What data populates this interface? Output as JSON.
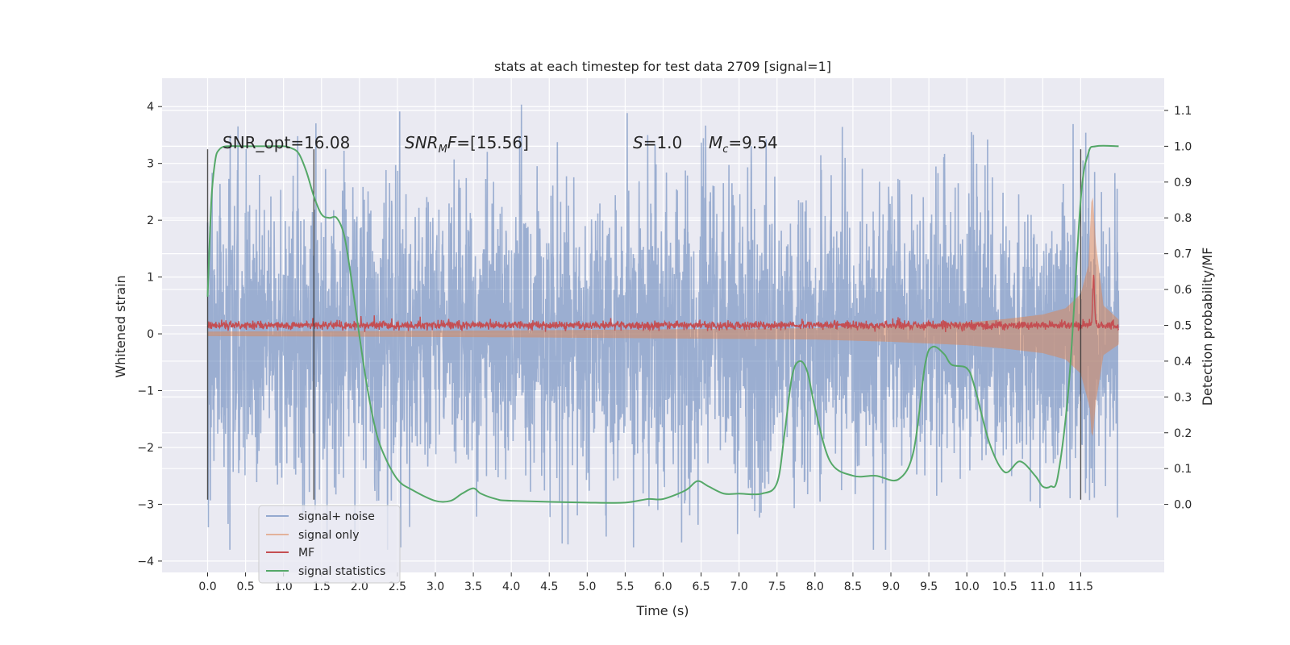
{
  "chart_data": {
    "type": "line",
    "title": "stats at each timestep for test data 2709 [signal=1]",
    "xlabel": "Time (s)",
    "ylabel": "Whitened strain",
    "y2label": "Detection probability/MF",
    "xlim": [
      -0.6,
      12.6
    ],
    "ylim": [
      -4.2,
      4.5
    ],
    "y2lim": [
      -0.19,
      1.19
    ],
    "x_ticks": [
      0.0,
      0.5,
      1.0,
      1.5,
      2.0,
      2.5,
      3.0,
      3.5,
      4.0,
      4.5,
      5.0,
      5.5,
      6.0,
      6.5,
      7.0,
      7.5,
      8.0,
      8.5,
      9.0,
      9.5,
      10.0,
      10.5,
      11.0,
      11.5
    ],
    "x_tick_labels": [
      "0.0",
      "0.5",
      "1.0",
      "1.5",
      "2.0",
      "2.5",
      "3.0",
      "3.5",
      "4.0",
      "4.5",
      "5.0",
      "5.5",
      "6.0",
      "6.5",
      "7.0",
      "7.5",
      "8.0",
      "8.5",
      "9.0",
      "9.5",
      "10.0",
      "10.5",
      "11.0",
      "11.5"
    ],
    "y_ticks": [
      -4,
      -3,
      -2,
      -1,
      0,
      1,
      2,
      3,
      4
    ],
    "y_tick_labels": [
      "−4",
      "−3",
      "−2",
      "−1",
      "0",
      "1",
      "2",
      "3",
      "4"
    ],
    "y2_ticks": [
      0.0,
      0.1,
      0.2,
      0.3,
      0.4,
      0.5,
      0.6,
      0.7,
      0.8,
      0.9,
      1.0,
      1.1
    ],
    "y2_tick_labels": [
      "0.0",
      "0.1",
      "0.2",
      "0.3",
      "0.4",
      "0.5",
      "0.6",
      "0.7",
      "0.8",
      "0.9",
      "1.0",
      "1.1"
    ],
    "grid": true,
    "legend_position": "lower-left",
    "annotations": {
      "snr_opt": "SNR_opt=16.08",
      "snr_mf_var": "SNR",
      "snr_mf_sub": "M",
      "snr_mf_f": "F",
      "snr_mf_rest": "=[15.56]",
      "s_var": "S",
      "s_rest": "=1.0",
      "mc_var": "M",
      "mc_sub": "c",
      "mc_rest": "=9.54"
    },
    "vertical_lines_x": [
      0.0,
      1.4,
      11.5
    ],
    "series": [
      {
        "name": "signal+ noise",
        "color": "#4c72b0",
        "axis": "left",
        "style": "dense noise band",
        "t_range": [
          0.0,
          12.0
        ],
        "typical_amplitude": 2.0,
        "max_peak": 4.1,
        "min_trough": -3.8
      },
      {
        "name": "signal only",
        "color": "#dd8452",
        "axis": "left",
        "style": "chirp envelope",
        "envelope_x": [
          0.0,
          2.0,
          4.0,
          6.0,
          8.0,
          9.0,
          10.0,
          10.5,
          11.0,
          11.3,
          11.5,
          11.6,
          11.65,
          11.7,
          11.8,
          12.0
        ],
        "envelope_y": [
          0.04,
          0.05,
          0.06,
          0.08,
          0.1,
          0.14,
          0.2,
          0.26,
          0.34,
          0.45,
          0.7,
          1.2,
          2.6,
          1.6,
          0.5,
          0.25
        ]
      },
      {
        "name": "MF",
        "color": "#c44e52",
        "axis": "right",
        "style": "noisy line",
        "baseline": 0.5,
        "peak_x": 11.67,
        "peak_value": 0.63
      },
      {
        "name": "signal statistics",
        "color": "#55a868",
        "axis": "right",
        "x": [
          0.0,
          0.05,
          0.1,
          0.15,
          0.25,
          0.5,
          0.8,
          1.0,
          1.1,
          1.2,
          1.3,
          1.4,
          1.5,
          1.6,
          1.7,
          1.8,
          1.9,
          2.0,
          2.1,
          2.2,
          2.3,
          2.5,
          2.7,
          3.0,
          3.2,
          3.35,
          3.5,
          3.6,
          3.8,
          4.0,
          5.0,
          5.5,
          5.8,
          6.0,
          6.3,
          6.45,
          6.6,
          6.8,
          7.0,
          7.3,
          7.5,
          7.6,
          7.7,
          7.8,
          7.9,
          8.0,
          8.2,
          8.5,
          8.8,
          9.1,
          9.3,
          9.45,
          9.55,
          9.7,
          9.8,
          10.0,
          10.1,
          10.3,
          10.5,
          10.7,
          10.9,
          11.0,
          11.1,
          11.2,
          11.35,
          11.5,
          11.6,
          11.7,
          12.0
        ],
        "y": [
          0.58,
          0.85,
          0.96,
          0.99,
          1.0,
          1.0,
          1.0,
          1.0,
          0.995,
          0.98,
          0.93,
          0.86,
          0.81,
          0.8,
          0.8,
          0.75,
          0.62,
          0.47,
          0.33,
          0.22,
          0.15,
          0.07,
          0.04,
          0.01,
          0.01,
          0.03,
          0.045,
          0.03,
          0.015,
          0.01,
          0.005,
          0.005,
          0.015,
          0.015,
          0.04,
          0.065,
          0.05,
          0.03,
          0.03,
          0.03,
          0.06,
          0.2,
          0.36,
          0.4,
          0.37,
          0.27,
          0.12,
          0.08,
          0.08,
          0.07,
          0.15,
          0.39,
          0.44,
          0.42,
          0.39,
          0.38,
          0.33,
          0.17,
          0.09,
          0.12,
          0.08,
          0.05,
          0.05,
          0.08,
          0.35,
          0.85,
          0.98,
          1.0,
          1.0
        ]
      }
    ]
  }
}
